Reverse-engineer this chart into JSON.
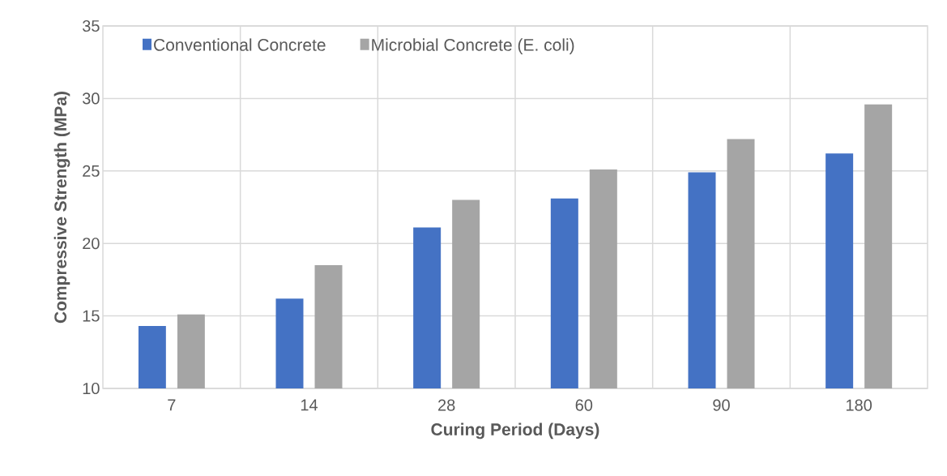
{
  "chart_data": {
    "type": "bar",
    "xlabel": "Curing Period (Days)",
    "ylabel": "Compressive Strength  (MPa)",
    "categories": [
      "7",
      "14",
      "28",
      "60",
      "90",
      "180"
    ],
    "series": [
      {
        "name": "Conventional Concrete",
        "color": "#4472c4",
        "values": [
          14.3,
          16.2,
          21.1,
          23.1,
          24.9,
          26.2
        ]
      },
      {
        "name": "Microbial Concrete (E. coli)",
        "color": "#a5a5a5",
        "values": [
          15.1,
          18.5,
          23.0,
          25.1,
          27.2,
          29.6
        ]
      }
    ],
    "ylim": [
      10,
      35
    ],
    "yticks": [
      10,
      15,
      20,
      25,
      30,
      35
    ],
    "grid": true,
    "legend": "top left"
  }
}
